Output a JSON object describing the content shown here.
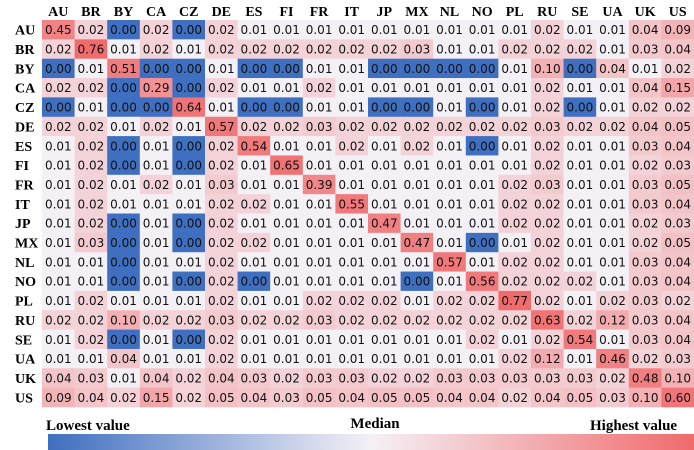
{
  "chart_data": {
    "type": "heatmap",
    "columns": [
      "AU",
      "BR",
      "BY",
      "CA",
      "CZ",
      "DE",
      "ES",
      "FI",
      "FR",
      "IT",
      "JP",
      "MX",
      "NL",
      "NO",
      "PL",
      "RU",
      "SE",
      "UA",
      "UK",
      "US"
    ],
    "rows": [
      "AU",
      "BR",
      "BY",
      "CA",
      "CZ",
      "DE",
      "ES",
      "FI",
      "FR",
      "IT",
      "JP",
      "MX",
      "NL",
      "NO",
      "PL",
      "RU",
      "SE",
      "UA",
      "UK",
      "US"
    ],
    "values": [
      [
        "0.45",
        "0.02",
        "0.00",
        "0.02",
        "0.00",
        "0.02",
        "0.01",
        "0.01",
        "0.01",
        "0.01",
        "0.01",
        "0.01",
        "0.01",
        "0.01",
        "0.01",
        "0.02",
        "0.01",
        "0.01",
        "0.04",
        "0.09"
      ],
      [
        "0.02",
        "0.76",
        "0.01",
        "0.02",
        "0.01",
        "0.02",
        "0.02",
        "0.02",
        "0.02",
        "0.02",
        "0.02",
        "0.03",
        "0.01",
        "0.01",
        "0.02",
        "0.02",
        "0.02",
        "0.01",
        "0.03",
        "0.04"
      ],
      [
        "0.00",
        "0.01",
        "0.51",
        "0.00",
        "0.00",
        "0.01",
        "0.00",
        "0.00",
        "0.01",
        "0.01",
        "0.00",
        "0.00",
        "0.00",
        "0.00",
        "0.01",
        "0.10",
        "0.00",
        "0.04",
        "0.01",
        "0.02"
      ],
      [
        "0.02",
        "0.02",
        "0.00",
        "0.29",
        "0.00",
        "0.02",
        "0.01",
        "0.01",
        "0.02",
        "0.01",
        "0.01",
        "0.01",
        "0.01",
        "0.01",
        "0.01",
        "0.02",
        "0.01",
        "0.01",
        "0.04",
        "0.15"
      ],
      [
        "0.00",
        "0.01",
        "0.00",
        "0.00",
        "0.64",
        "0.01",
        "0.00",
        "0.00",
        "0.01",
        "0.01",
        "0.00",
        "0.00",
        "0.01",
        "0.00",
        "0.01",
        "0.02",
        "0.00",
        "0.01",
        "0.02",
        "0.02"
      ],
      [
        "0.02",
        "0.02",
        "0.01",
        "0.02",
        "0.01",
        "0.57",
        "0.02",
        "0.02",
        "0.03",
        "0.02",
        "0.02",
        "0.02",
        "0.02",
        "0.02",
        "0.02",
        "0.03",
        "0.02",
        "0.02",
        "0.04",
        "0.05"
      ],
      [
        "0.01",
        "0.02",
        "0.00",
        "0.01",
        "0.00",
        "0.02",
        "0.54",
        "0.01",
        "0.01",
        "0.02",
        "0.01",
        "0.02",
        "0.01",
        "0.00",
        "0.01",
        "0.02",
        "0.01",
        "0.01",
        "0.03",
        "0.04"
      ],
      [
        "0.01",
        "0.02",
        "0.00",
        "0.01",
        "0.00",
        "0.02",
        "0.01",
        "0.65",
        "0.01",
        "0.01",
        "0.01",
        "0.01",
        "0.01",
        "0.01",
        "0.01",
        "0.02",
        "0.01",
        "0.01",
        "0.02",
        "0.03"
      ],
      [
        "0.01",
        "0.02",
        "0.01",
        "0.02",
        "0.01",
        "0.03",
        "0.01",
        "0.01",
        "0.39",
        "0.01",
        "0.01",
        "0.01",
        "0.01",
        "0.01",
        "0.02",
        "0.03",
        "0.01",
        "0.01",
        "0.03",
        "0.05"
      ],
      [
        "0.01",
        "0.02",
        "0.01",
        "0.01",
        "0.01",
        "0.02",
        "0.02",
        "0.01",
        "0.01",
        "0.55",
        "0.01",
        "0.01",
        "0.01",
        "0.01",
        "0.02",
        "0.02",
        "0.01",
        "0.01",
        "0.03",
        "0.04"
      ],
      [
        "0.01",
        "0.02",
        "0.00",
        "0.01",
        "0.00",
        "0.02",
        "0.01",
        "0.01",
        "0.01",
        "0.01",
        "0.47",
        "0.01",
        "0.01",
        "0.01",
        "0.02",
        "0.02",
        "0.01",
        "0.01",
        "0.02",
        "0.03"
      ],
      [
        "0.01",
        "0.03",
        "0.00",
        "0.01",
        "0.00",
        "0.02",
        "0.02",
        "0.01",
        "0.01",
        "0.01",
        "0.01",
        "0.47",
        "0.01",
        "0.00",
        "0.01",
        "0.02",
        "0.01",
        "0.01",
        "0.02",
        "0.05"
      ],
      [
        "0.01",
        "0.01",
        "0.00",
        "0.01",
        "0.01",
        "0.02",
        "0.01",
        "0.01",
        "0.01",
        "0.01",
        "0.01",
        "0.01",
        "0.57",
        "0.01",
        "0.02",
        "0.02",
        "0.01",
        "0.01",
        "0.03",
        "0.04"
      ],
      [
        "0.01",
        "0.01",
        "0.00",
        "0.01",
        "0.00",
        "0.02",
        "0.00",
        "0.01",
        "0.01",
        "0.01",
        "0.01",
        "0.00",
        "0.01",
        "0.56",
        "0.02",
        "0.02",
        "0.02",
        "0.01",
        "0.03",
        "0.04"
      ],
      [
        "0.01",
        "0.02",
        "0.01",
        "0.01",
        "0.01",
        "0.02",
        "0.01",
        "0.01",
        "0.02",
        "0.02",
        "0.02",
        "0.01",
        "0.02",
        "0.02",
        "0.77",
        "0.02",
        "0.01",
        "0.02",
        "0.03",
        "0.02"
      ],
      [
        "0.02",
        "0.02",
        "0.10",
        "0.02",
        "0.02",
        "0.03",
        "0.02",
        "0.02",
        "0.03",
        "0.02",
        "0.02",
        "0.02",
        "0.02",
        "0.02",
        "0.02",
        "0.63",
        "0.02",
        "0.12",
        "0.03",
        "0.04"
      ],
      [
        "0.01",
        "0.02",
        "0.00",
        "0.01",
        "0.00",
        "0.02",
        "0.01",
        "0.01",
        "0.01",
        "0.01",
        "0.01",
        "0.01",
        "0.01",
        "0.02",
        "0.01",
        "0.02",
        "0.54",
        "0.01",
        "0.03",
        "0.04"
      ],
      [
        "0.01",
        "0.01",
        "0.04",
        "0.01",
        "0.01",
        "0.02",
        "0.01",
        "0.01",
        "0.01",
        "0.01",
        "0.01",
        "0.01",
        "0.01",
        "0.01",
        "0.02",
        "0.12",
        "0.01",
        "0.46",
        "0.02",
        "0.03"
      ],
      [
        "0.04",
        "0.03",
        "0.01",
        "0.04",
        "0.02",
        "0.04",
        "0.03",
        "0.02",
        "0.03",
        "0.03",
        "0.02",
        "0.02",
        "0.03",
        "0.03",
        "0.03",
        "0.03",
        "0.03",
        "0.02",
        "0.48",
        "0.10"
      ],
      [
        "0.09",
        "0.04",
        "0.02",
        "0.15",
        "0.02",
        "0.05",
        "0.04",
        "0.03",
        "0.05",
        "0.04",
        "0.05",
        "0.05",
        "0.04",
        "0.04",
        "0.02",
        "0.04",
        "0.05",
        "0.03",
        "0.10",
        "0.60"
      ]
    ],
    "colorbar": {
      "low_label": "Lowest value",
      "mid_label": "Median",
      "high_label": "Highest value",
      "low_color": "#3f6fc0",
      "mid_color": "#f4f1f6",
      "high_color": "#f16a6c"
    }
  }
}
